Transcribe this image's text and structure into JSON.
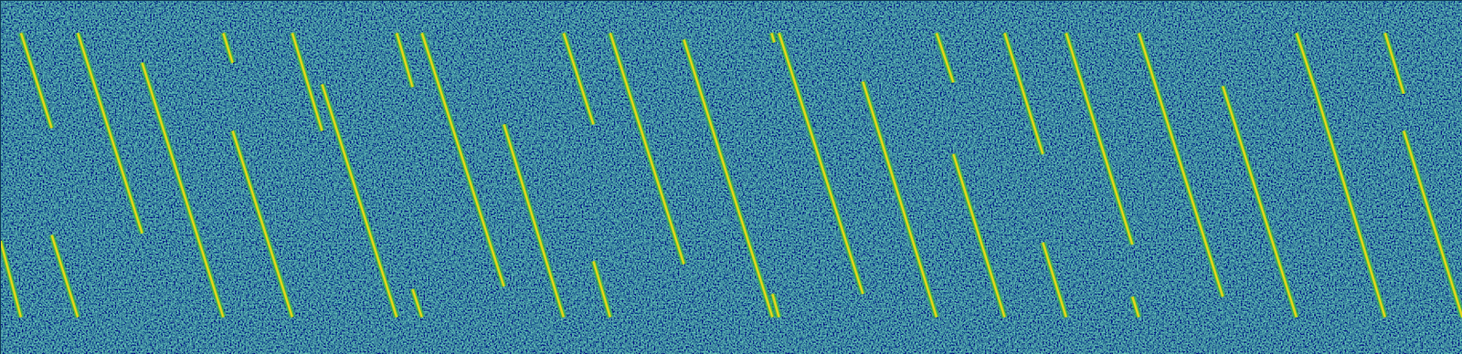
{
  "chart_data": {
    "type": "spectrogram",
    "xlim": [
      0,
      1568
    ],
    "ylim": [
      380,
      0
    ],
    "tick_labels": false,
    "grid": false,
    "color": "#e8d41e",
    "segments": [
      {
        "x1": 0,
        "y1": 258,
        "x2": 22,
        "y2": 340
      },
      {
        "x1": 22,
        "y1": 35,
        "x2": 55,
        "y2": 137
      },
      {
        "x1": 55,
        "y1": 252,
        "x2": 83,
        "y2": 340
      },
      {
        "x1": 83,
        "y1": 35,
        "x2": 152,
        "y2": 250
      },
      {
        "x1": 152,
        "y1": 67,
        "x2": 239,
        "y2": 340
      },
      {
        "x1": 239,
        "y1": 35,
        "x2": 249,
        "y2": 67
      },
      {
        "x1": 249,
        "y1": 140,
        "x2": 313,
        "y2": 340
      },
      {
        "x1": 313,
        "y1": 35,
        "x2": 345,
        "y2": 140
      },
      {
        "x1": 345,
        "y1": 90,
        "x2": 425,
        "y2": 340
      },
      {
        "x1": 425,
        "y1": 35,
        "x2": 442,
        "y2": 93
      },
      {
        "x1": 442,
        "y1": 310,
        "x2": 452,
        "y2": 340
      },
      {
        "x1": 452,
        "y1": 35,
        "x2": 540,
        "y2": 307
      },
      {
        "x1": 540,
        "y1": 133,
        "x2": 604,
        "y2": 340
      },
      {
        "x1": 604,
        "y1": 35,
        "x2": 636,
        "y2": 133
      },
      {
        "x1": 636,
        "y1": 280,
        "x2": 654,
        "y2": 340
      },
      {
        "x1": 654,
        "y1": 35,
        "x2": 733,
        "y2": 283
      },
      {
        "x1": 733,
        "y1": 42,
        "x2": 828,
        "y2": 340
      },
      {
        "x1": 827,
        "y1": 35,
        "x2": 830,
        "y2": 45
      },
      {
        "x1": 828,
        "y1": 315,
        "x2": 835,
        "y2": 340
      },
      {
        "x1": 835,
        "y1": 35,
        "x2": 925,
        "y2": 315
      },
      {
        "x1": 925,
        "y1": 87,
        "x2": 1004,
        "y2": 340
      },
      {
        "x1": 1004,
        "y1": 35,
        "x2": 1022,
        "y2": 88
      },
      {
        "x1": 1022,
        "y1": 165,
        "x2": 1077,
        "y2": 340
      },
      {
        "x1": 1077,
        "y1": 35,
        "x2": 1118,
        "y2": 165
      },
      {
        "x1": 1118,
        "y1": 260,
        "x2": 1143,
        "y2": 340
      },
      {
        "x1": 1143,
        "y1": 35,
        "x2": 1214,
        "y2": 262
      },
      {
        "x1": 1214,
        "y1": 318,
        "x2": 1221,
        "y2": 340
      },
      {
        "x1": 1221,
        "y1": 35,
        "x2": 1311,
        "y2": 318
      },
      {
        "x1": 1311,
        "y1": 92,
        "x2": 1390,
        "y2": 340
      },
      {
        "x1": 1390,
        "y1": 35,
        "x2": 1410,
        "y2": 95
      },
      {
        "x1": 1410,
        "y1": 95,
        "x2": 1485,
        "y2": 340
      },
      {
        "x1": 1485,
        "y1": 35,
        "x2": 1505,
        "y2": 100
      },
      {
        "x1": 1505,
        "y1": 140,
        "x2": 1568,
        "y2": 340
      }
    ]
  }
}
